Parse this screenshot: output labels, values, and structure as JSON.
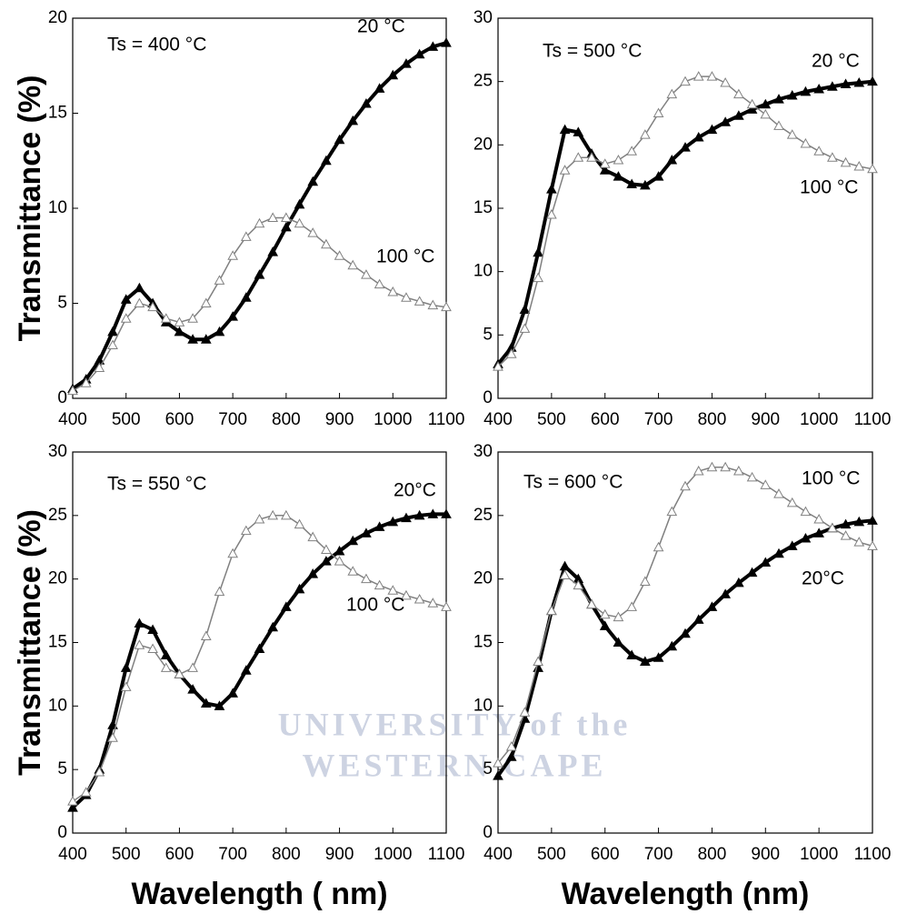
{
  "watermark": [
    "UNIVERSITY of the",
    "WESTERN CAPE"
  ],
  "chart_data": [
    {
      "type": "line",
      "annotation": "Ts = 400 °C",
      "y_label": "Transmittance (%)",
      "x": [
        400,
        425,
        450,
        475,
        500,
        525,
        550,
        575,
        600,
        625,
        650,
        675,
        700,
        725,
        750,
        775,
        800,
        825,
        850,
        875,
        900,
        925,
        950,
        975,
        1000,
        1025,
        1050,
        1075,
        1100
      ],
      "xlim": [
        400,
        1100
      ],
      "xticks": [
        400,
        500,
        600,
        700,
        800,
        900,
        1000,
        1100
      ],
      "ylim": [
        0,
        20
      ],
      "yticks": [
        0,
        5,
        10,
        15,
        20
      ],
      "series": [
        {
          "name": "20 °C",
          "color": "#000000",
          "marker": "filled-triangle",
          "values": [
            0.5,
            1.0,
            2.0,
            3.5,
            5.2,
            5.8,
            5.0,
            4.0,
            3.5,
            3.1,
            3.1,
            3.5,
            4.3,
            5.3,
            6.5,
            7.7,
            9.0,
            10.2,
            11.4,
            12.5,
            13.6,
            14.6,
            15.5,
            16.3,
            17.0,
            17.6,
            18.1,
            18.5,
            18.7
          ]
        },
        {
          "name": "100 °C",
          "color": "#808080",
          "marker": "open-triangle",
          "values": [
            0.4,
            0.8,
            1.6,
            2.8,
            4.2,
            5.0,
            4.8,
            4.2,
            4.0,
            4.2,
            5.0,
            6.2,
            7.5,
            8.5,
            9.2,
            9.5,
            9.5,
            9.2,
            8.7,
            8.1,
            7.5,
            7.0,
            6.5,
            6.0,
            5.6,
            5.3,
            5.1,
            4.9,
            4.8
          ]
        }
      ]
    },
    {
      "type": "line",
      "annotation": "Ts = 500 °C",
      "x": [
        400,
        425,
        450,
        475,
        500,
        525,
        550,
        575,
        600,
        625,
        650,
        675,
        700,
        725,
        750,
        775,
        800,
        825,
        850,
        875,
        900,
        925,
        950,
        975,
        1000,
        1025,
        1050,
        1075,
        1100
      ],
      "xlim": [
        400,
        1100
      ],
      "xticks": [
        400,
        500,
        600,
        700,
        800,
        900,
        1000,
        1100
      ],
      "ylim": [
        0,
        30
      ],
      "yticks": [
        0,
        5,
        10,
        15,
        20,
        25,
        30
      ],
      "series": [
        {
          "name": "20 °C",
          "color": "#000000",
          "marker": "filled-triangle",
          "values": [
            2.7,
            4.0,
            7.0,
            11.5,
            16.5,
            21.2,
            21.0,
            19.3,
            18.0,
            17.5,
            16.9,
            16.8,
            17.5,
            18.8,
            19.8,
            20.6,
            21.2,
            21.8,
            22.3,
            22.8,
            23.2,
            23.6,
            23.9,
            24.2,
            24.4,
            24.6,
            24.8,
            24.9,
            25.0
          ]
        },
        {
          "name": "100 °C",
          "color": "#808080",
          "marker": "open-triangle",
          "values": [
            2.5,
            3.5,
            5.5,
            9.5,
            14.5,
            18.0,
            19.0,
            19.0,
            18.5,
            18.8,
            19.5,
            20.8,
            22.5,
            24.0,
            25.0,
            25.4,
            25.4,
            24.9,
            24.0,
            23.2,
            22.4,
            21.5,
            20.8,
            20.1,
            19.5,
            19.0,
            18.6,
            18.3,
            18.1
          ]
        }
      ]
    },
    {
      "type": "line",
      "annotation": "Ts = 550 °C",
      "y_label": "Transmittance (%)",
      "x_label": "Wavelength ( nm)",
      "x": [
        400,
        425,
        450,
        475,
        500,
        525,
        550,
        575,
        600,
        625,
        650,
        675,
        700,
        725,
        750,
        775,
        800,
        825,
        850,
        875,
        900,
        925,
        950,
        975,
        1000,
        1025,
        1050,
        1075,
        1100
      ],
      "xlim": [
        400,
        1100
      ],
      "xticks": [
        400,
        500,
        600,
        700,
        800,
        900,
        1000,
        1100
      ],
      "ylim": [
        0,
        30
      ],
      "yticks": [
        0,
        5,
        10,
        15,
        20,
        25,
        30
      ],
      "series": [
        {
          "name": "20°C",
          "color": "#000000",
          "marker": "filled-triangle",
          "values": [
            2.0,
            3.0,
            5.0,
            8.5,
            13.0,
            16.5,
            16.0,
            14.0,
            12.5,
            11.3,
            10.2,
            10.0,
            11.0,
            12.8,
            14.5,
            16.2,
            17.8,
            19.2,
            20.4,
            21.4,
            22.2,
            23.0,
            23.6,
            24.1,
            24.5,
            24.8,
            25.0,
            25.1,
            25.1
          ]
        },
        {
          "name": "100 °C",
          "color": "#808080",
          "marker": "open-triangle",
          "values": [
            2.5,
            3.2,
            4.8,
            7.5,
            11.5,
            14.8,
            14.5,
            13.0,
            12.5,
            13.0,
            15.5,
            19.0,
            22.0,
            23.8,
            24.7,
            25.0,
            25.0,
            24.3,
            23.3,
            22.3,
            21.4,
            20.6,
            20.0,
            19.5,
            19.1,
            18.7,
            18.4,
            18.1,
            17.8
          ]
        }
      ]
    },
    {
      "type": "line",
      "annotation": "Ts = 600 °C",
      "x_label": "Wavelength (nm)",
      "x": [
        400,
        425,
        450,
        475,
        500,
        525,
        550,
        575,
        600,
        625,
        650,
        675,
        700,
        725,
        750,
        775,
        800,
        825,
        850,
        875,
        900,
        925,
        950,
        975,
        1000,
        1025,
        1050,
        1075,
        1100
      ],
      "xlim": [
        400,
        1100
      ],
      "xticks": [
        400,
        500,
        600,
        700,
        800,
        900,
        1000,
        1100
      ],
      "ylim": [
        0,
        30
      ],
      "yticks": [
        0,
        5,
        10,
        15,
        20,
        25,
        30
      ],
      "series": [
        {
          "name": "20°C",
          "color": "#000000",
          "marker": "filled-triangle",
          "values": [
            4.5,
            6.0,
            9.0,
            13.0,
            17.5,
            21.0,
            20.0,
            18.0,
            16.3,
            15.0,
            14.0,
            13.5,
            13.8,
            14.7,
            15.7,
            16.8,
            17.8,
            18.8,
            19.7,
            20.5,
            21.3,
            22.0,
            22.6,
            23.2,
            23.6,
            24.0,
            24.3,
            24.5,
            24.6
          ]
        },
        {
          "name": "100 °C",
          "color": "#808080",
          "marker": "open-triangle",
          "values": [
            5.5,
            6.8,
            9.5,
            13.5,
            17.5,
            20.3,
            19.5,
            18.0,
            17.2,
            17.0,
            17.8,
            19.8,
            22.5,
            25.3,
            27.3,
            28.5,
            28.8,
            28.8,
            28.5,
            28.0,
            27.4,
            26.7,
            26.0,
            25.3,
            24.7,
            24.0,
            23.4,
            22.9,
            22.6
          ]
        }
      ]
    }
  ]
}
